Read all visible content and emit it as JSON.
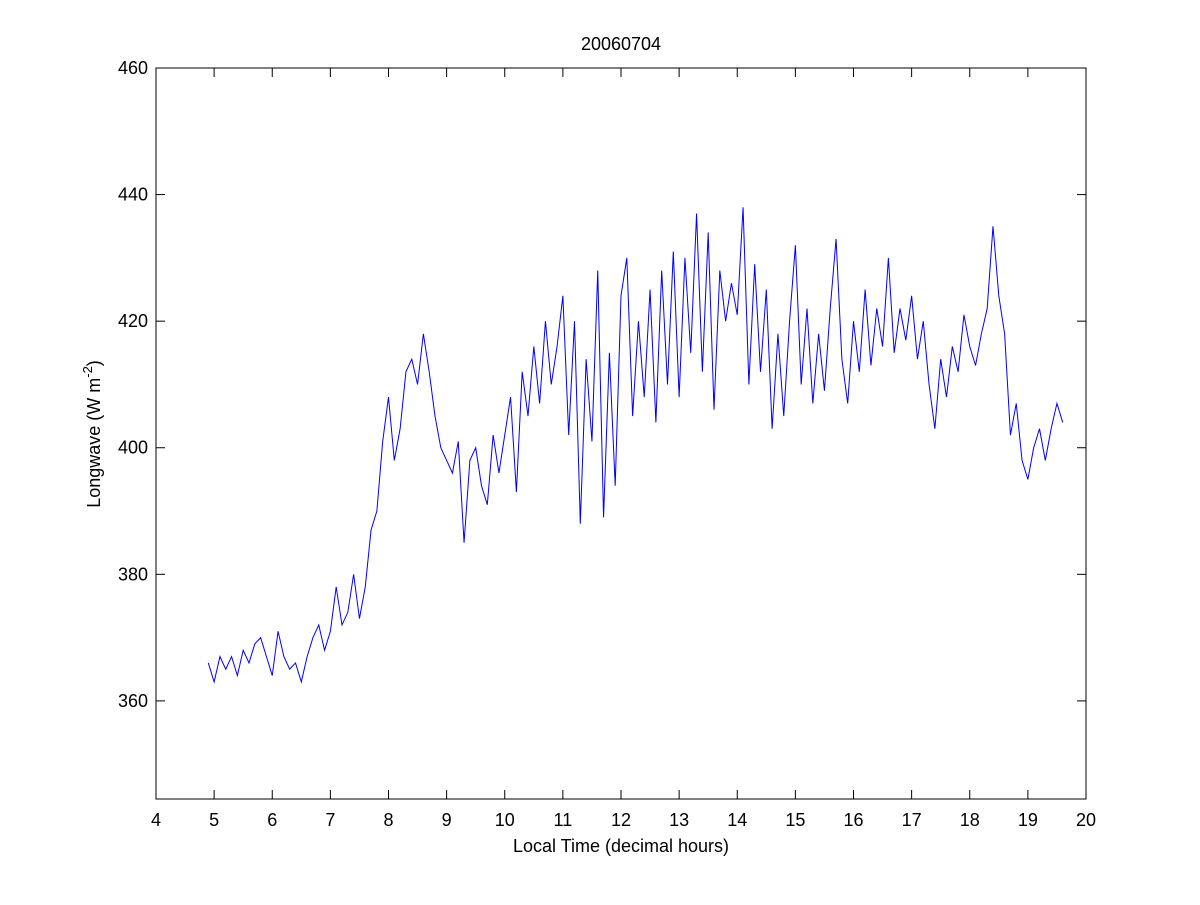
{
  "chart_data": {
    "type": "line",
    "title": "20060704",
    "x_label": "Local Time (decimal hours)",
    "y_label_parts": [
      "Longwave (W m",
      "-2",
      ")"
    ],
    "xlim": [
      4,
      20
    ],
    "xticks": [
      4,
      5,
      6,
      7,
      8,
      9,
      10,
      11,
      12,
      13,
      14,
      15,
      16,
      17,
      18,
      19,
      20
    ],
    "ylim": [
      344.5,
      460
    ],
    "yticks": [
      360,
      380,
      400,
      420,
      440,
      460
    ],
    "x": [
      4.9,
      5.0,
      5.1,
      5.2,
      5.3,
      5.4,
      5.5,
      5.6,
      5.7,
      5.8,
      5.9,
      6.0,
      6.1,
      6.2,
      6.3,
      6.4,
      6.5,
      6.6,
      6.7,
      6.8,
      6.9,
      7.0,
      7.1,
      7.2,
      7.3,
      7.4,
      7.5,
      7.6,
      7.7,
      7.8,
      7.9,
      8.0,
      8.1,
      8.2,
      8.3,
      8.4,
      8.5,
      8.6,
      8.7,
      8.8,
      8.9,
      9.0,
      9.1,
      9.2,
      9.3,
      9.4,
      9.5,
      9.6,
      9.7,
      9.8,
      9.9,
      10.0,
      10.1,
      10.2,
      10.3,
      10.4,
      10.5,
      10.6,
      10.7,
      10.8,
      10.9,
      11.0,
      11.1,
      11.2,
      11.3,
      11.4,
      11.5,
      11.6,
      11.7,
      11.8,
      11.9,
      12.0,
      12.1,
      12.2,
      12.3,
      12.4,
      12.5,
      12.6,
      12.7,
      12.8,
      12.9,
      13.0,
      13.1,
      13.2,
      13.3,
      13.4,
      13.5,
      13.6,
      13.7,
      13.8,
      13.9,
      14.0,
      14.1,
      14.2,
      14.3,
      14.4,
      14.5,
      14.6,
      14.7,
      14.8,
      14.9,
      15.0,
      15.1,
      15.2,
      15.3,
      15.4,
      15.5,
      15.6,
      15.7,
      15.8,
      15.9,
      16.0,
      16.1,
      16.2,
      16.3,
      16.4,
      16.5,
      16.6,
      16.7,
      16.8,
      16.9,
      17.0,
      17.1,
      17.2,
      17.3,
      17.4,
      17.5,
      17.6,
      17.7,
      17.8,
      17.9,
      18.0,
      18.1,
      18.2,
      18.3,
      18.4,
      18.5,
      18.6,
      18.7,
      18.8,
      18.9,
      19.0,
      19.1,
      19.2,
      19.3,
      19.4,
      19.5,
      19.6
    ],
    "series": [
      {
        "color": "#0000ff",
        "values": [
          366,
          363,
          367,
          365,
          367,
          364,
          368,
          366,
          369,
          370,
          367,
          364,
          371,
          367,
          365,
          366,
          363,
          367,
          370,
          372,
          368,
          371,
          378,
          372,
          374,
          380,
          373,
          378,
          387,
          390,
          401,
          408,
          398,
          403,
          412,
          414,
          410,
          418,
          412,
          405,
          400,
          398,
          396,
          401,
          385,
          398,
          400,
          394,
          391,
          402,
          396,
          402,
          408,
          393,
          412,
          405,
          416,
          407,
          420,
          410,
          416,
          424,
          402,
          420,
          388,
          414,
          401,
          428,
          389,
          415,
          394,
          424,
          430,
          405,
          420,
          408,
          425,
          404,
          428,
          410,
          431,
          408,
          430,
          415,
          437,
          412,
          434,
          406,
          428,
          420,
          426,
          421,
          438,
          410,
          429,
          412,
          425,
          403,
          418,
          405,
          420,
          432,
          410,
          422,
          407,
          418,
          409,
          422,
          433,
          414,
          407,
          420,
          412,
          425,
          413,
          422,
          416,
          430,
          415,
          422,
          417,
          424,
          414,
          420,
          410,
          403,
          414,
          408,
          416,
          412,
          421,
          416,
          413,
          418,
          422,
          435,
          424,
          418,
          402,
          407,
          398,
          395,
          400,
          403,
          398,
          403,
          407,
          404
        ]
      }
    ]
  }
}
